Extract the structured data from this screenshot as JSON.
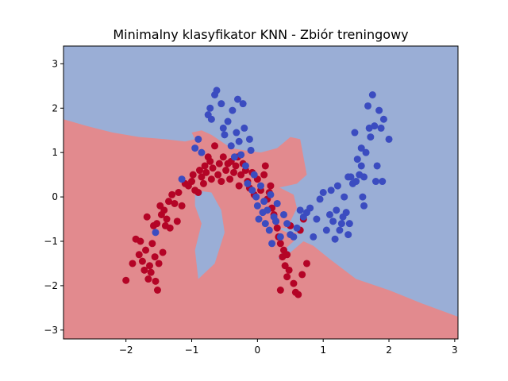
{
  "chart_data": {
    "type": "scatter",
    "title": "Minimalny klasyfikator KNN - Zbiór treningowy",
    "xlabel": "",
    "ylabel": "",
    "xlim": [
      -2.95,
      3.05
    ],
    "ylim": [
      -3.2,
      3.4
    ],
    "xticks": [
      -2,
      -1,
      0,
      1,
      2,
      3
    ],
    "yticks": [
      -3,
      -2,
      -1,
      0,
      1,
      2,
      3
    ],
    "grid": false,
    "legend": "none",
    "colors": {
      "class0_point": "#b40426",
      "class1_point": "#3b4cc0",
      "class0_region": "#e28a8e",
      "class1_region": "#9aaed6"
    },
    "decision_boundary": [
      [
        -2.95,
        1.75
      ],
      [
        -2.6,
        1.6
      ],
      [
        -2.2,
        1.45
      ],
      [
        -1.8,
        1.35
      ],
      [
        -1.4,
        1.3
      ],
      [
        -1.1,
        1.25
      ],
      [
        -0.95,
        1.3
      ],
      [
        -1.0,
        1.45
      ],
      [
        -0.85,
        1.5
      ],
      [
        -0.7,
        1.4
      ],
      [
        -0.55,
        1.25
      ],
      [
        -0.4,
        1.1
      ],
      [
        -0.2,
        1.05
      ],
      [
        0.05,
        1.0
      ],
      [
        0.3,
        1.1
      ],
      [
        0.5,
        1.35
      ],
      [
        0.65,
        1.3
      ],
      [
        0.7,
        0.9
      ],
      [
        0.75,
        0.5
      ],
      [
        0.6,
        0.3
      ],
      [
        0.3,
        0.2
      ],
      [
        0.1,
        -0.1
      ],
      [
        0.15,
        -0.4
      ],
      [
        0.3,
        -0.7
      ],
      [
        0.45,
        -0.8
      ],
      [
        0.6,
        -0.8
      ],
      [
        0.55,
        -1.0
      ],
      [
        0.4,
        -1.2
      ],
      [
        0.3,
        -1.4
      ],
      [
        0.5,
        -1.25
      ],
      [
        0.7,
        -1.0
      ],
      [
        0.85,
        -1.1
      ],
      [
        1.1,
        -1.4
      ],
      [
        1.5,
        -1.85
      ],
      [
        2.0,
        -2.1
      ],
      [
        2.5,
        -2.4
      ],
      [
        3.05,
        -2.7
      ]
    ],
    "red_island": [
      [
        -0.75,
        0.8
      ],
      [
        -0.3,
        0.75
      ],
      [
        0.1,
        0.6
      ],
      [
        0.2,
        0.3
      ],
      [
        0.35,
        0.2
      ],
      [
        0.55,
        0.05
      ],
      [
        0.6,
        -0.25
      ],
      [
        0.45,
        -0.7
      ],
      [
        0.2,
        -0.7
      ],
      [
        0.05,
        -0.5
      ],
      [
        -0.05,
        -0.2
      ],
      [
        -0.1,
        0.1
      ],
      [
        -0.3,
        0.2
      ],
      [
        -0.6,
        0.3
      ],
      [
        -0.75,
        0.55
      ]
    ],
    "blue_pocket": [
      [
        -0.95,
        0.15
      ],
      [
        -0.7,
        0.1
      ],
      [
        -0.55,
        -0.3
      ],
      [
        -0.5,
        -0.8
      ],
      [
        -0.65,
        -1.5
      ],
      [
        -0.9,
        -1.85
      ],
      [
        -0.95,
        -1.2
      ],
      [
        -0.85,
        -0.6
      ],
      [
        -0.95,
        -0.2
      ]
    ],
    "series": [
      {
        "class": 0,
        "points": [
          [
            -2.0,
            -1.88
          ],
          [
            -1.9,
            -1.5
          ],
          [
            -1.85,
            -0.95
          ],
          [
            -1.8,
            -1.3
          ],
          [
            -1.78,
            -1.0
          ],
          [
            -1.75,
            -1.45
          ],
          [
            -1.72,
            -1.65
          ],
          [
            -1.7,
            -1.2
          ],
          [
            -1.68,
            -0.45
          ],
          [
            -1.66,
            -1.85
          ],
          [
            -1.64,
            -1.55
          ],
          [
            -1.62,
            -1.7
          ],
          [
            -1.6,
            -1.05
          ],
          [
            -1.58,
            -0.65
          ],
          [
            -1.56,
            -1.35
          ],
          [
            -1.55,
            -1.9
          ],
          [
            -1.53,
            -0.6
          ],
          [
            -1.52,
            -2.1
          ],
          [
            -1.5,
            -1.5
          ],
          [
            -1.48,
            -0.2
          ],
          [
            -1.46,
            -0.4
          ],
          [
            -1.44,
            -1.25
          ],
          [
            -1.42,
            -0.3
          ],
          [
            -1.4,
            -0.65
          ],
          [
            -1.38,
            -0.5
          ],
          [
            -1.35,
            -0.1
          ],
          [
            -1.33,
            -0.7
          ],
          [
            -1.3,
            0.05
          ],
          [
            -1.26,
            -0.15
          ],
          [
            -1.22,
            -0.55
          ],
          [
            -1.2,
            0.1
          ],
          [
            -1.15,
            -0.2
          ],
          [
            -1.1,
            0.3
          ],
          [
            -1.05,
            0.25
          ],
          [
            -1.0,
            0.35
          ],
          [
            -0.98,
            0.5
          ],
          [
            -0.95,
            0.15
          ],
          [
            -0.9,
            0.1
          ],
          [
            -0.88,
            0.6
          ],
          [
            -0.85,
            0.45
          ],
          [
            -0.82,
            0.3
          ],
          [
            -0.8,
            0.7
          ],
          [
            -0.78,
            0.55
          ],
          [
            -0.75,
            0.9
          ],
          [
            -0.72,
            0.8
          ],
          [
            -0.7,
            0.4
          ],
          [
            -0.68,
            0.65
          ],
          [
            -0.65,
            1.15
          ],
          [
            -0.6,
            0.5
          ],
          [
            -0.58,
            0.75
          ],
          [
            -0.55,
            0.35
          ],
          [
            -0.52,
            0.9
          ],
          [
            -0.48,
            0.6
          ],
          [
            -0.45,
            0.75
          ],
          [
            -0.42,
            0.4
          ],
          [
            -0.4,
            0.8
          ],
          [
            -0.36,
            0.55
          ],
          [
            -0.33,
            0.7
          ],
          [
            -0.3,
            0.9
          ],
          [
            -0.28,
            0.25
          ],
          [
            -0.25,
            0.5
          ],
          [
            -0.22,
            0.75
          ],
          [
            -0.18,
            0.6
          ],
          [
            -0.15,
            0.35
          ],
          [
            -0.12,
            0.2
          ],
          [
            -0.08,
            0.55
          ],
          [
            -0.05,
            0.05
          ],
          [
            0.0,
            0.4
          ],
          [
            0.05,
            0.15
          ],
          [
            0.1,
            0.5
          ],
          [
            0.12,
            0.7
          ],
          [
            0.15,
            -0.05
          ],
          [
            0.18,
            0.1
          ],
          [
            0.2,
            0.25
          ],
          [
            0.22,
            -0.25
          ],
          [
            0.25,
            -0.4
          ],
          [
            0.28,
            -0.55
          ],
          [
            0.3,
            -0.7
          ],
          [
            0.32,
            -0.9
          ],
          [
            0.35,
            -1.05
          ],
          [
            0.38,
            -1.35
          ],
          [
            0.4,
            -1.2
          ],
          [
            0.42,
            -1.55
          ],
          [
            0.45,
            -1.8
          ],
          [
            0.48,
            -1.65
          ],
          [
            0.5,
            -0.65
          ],
          [
            0.55,
            -1.95
          ],
          [
            0.58,
            -2.15
          ],
          [
            0.62,
            -2.2
          ],
          [
            0.65,
            -0.75
          ],
          [
            0.68,
            -1.75
          ],
          [
            0.7,
            -0.5
          ],
          [
            0.75,
            -1.5
          ],
          [
            0.35,
            -2.1
          ],
          [
            0.45,
            -1.3
          ]
        ]
      },
      {
        "class": 1,
        "points": [
          [
            -1.55,
            -0.8
          ],
          [
            -1.15,
            0.4
          ],
          [
            -0.95,
            1.1
          ],
          [
            -0.9,
            1.3
          ],
          [
            -0.85,
            1.0
          ],
          [
            -0.75,
            1.85
          ],
          [
            -0.72,
            2.0
          ],
          [
            -0.7,
            1.75
          ],
          [
            -0.65,
            2.3
          ],
          [
            -0.62,
            2.4
          ],
          [
            -0.55,
            2.1
          ],
          [
            -0.52,
            1.55
          ],
          [
            -0.5,
            1.4
          ],
          [
            -0.45,
            1.7
          ],
          [
            -0.4,
            1.15
          ],
          [
            -0.38,
            1.95
          ],
          [
            -0.35,
            0.9
          ],
          [
            -0.32,
            1.45
          ],
          [
            -0.3,
            2.2
          ],
          [
            -0.28,
            1.25
          ],
          [
            -0.25,
            0.95
          ],
          [
            -0.22,
            2.1
          ],
          [
            -0.2,
            1.55
          ],
          [
            -0.18,
            0.7
          ],
          [
            -0.15,
            0.3
          ],
          [
            -0.12,
            1.3
          ],
          [
            -0.1,
            1.05
          ],
          [
            -0.08,
            0.15
          ],
          [
            -0.05,
            0.5
          ],
          [
            -0.02,
            0.0
          ],
          [
            0.0,
            -0.2
          ],
          [
            0.02,
            -0.5
          ],
          [
            0.05,
            0.25
          ],
          [
            0.08,
            -0.35
          ],
          [
            0.1,
            -0.1
          ],
          [
            0.12,
            -0.6
          ],
          [
            0.15,
            -0.3
          ],
          [
            0.18,
            -0.75
          ],
          [
            0.2,
            0.05
          ],
          [
            0.22,
            -1.05
          ],
          [
            0.25,
            -0.45
          ],
          [
            0.28,
            -0.55
          ],
          [
            0.3,
            -0.15
          ],
          [
            0.35,
            -0.9
          ],
          [
            0.4,
            -0.4
          ],
          [
            0.45,
            -0.6
          ],
          [
            0.5,
            -0.85
          ],
          [
            0.55,
            -0.9
          ],
          [
            0.6,
            -0.7
          ],
          [
            0.65,
            -0.3
          ],
          [
            0.7,
            -0.45
          ],
          [
            0.75,
            -0.35
          ],
          [
            0.8,
            -0.25
          ],
          [
            0.85,
            -0.9
          ],
          [
            0.9,
            -0.5
          ],
          [
            0.95,
            -0.05
          ],
          [
            1.0,
            0.1
          ],
          [
            1.05,
            -0.75
          ],
          [
            1.1,
            -0.4
          ],
          [
            1.12,
            0.15
          ],
          [
            1.15,
            -0.55
          ],
          [
            1.18,
            -0.95
          ],
          [
            1.2,
            -0.3
          ],
          [
            1.22,
            0.25
          ],
          [
            1.25,
            -0.75
          ],
          [
            1.28,
            -0.6
          ],
          [
            1.3,
            -0.45
          ],
          [
            1.32,
            0.0
          ],
          [
            1.35,
            -0.35
          ],
          [
            1.38,
            -0.85
          ],
          [
            1.4,
            -0.6
          ],
          [
            1.42,
            0.45
          ],
          [
            1.45,
            0.3
          ],
          [
            1.48,
            1.45
          ],
          [
            1.5,
            0.35
          ],
          [
            1.52,
            0.85
          ],
          [
            1.55,
            0.5
          ],
          [
            1.58,
            1.1
          ],
          [
            1.6,
            0.0
          ],
          [
            1.62,
            -0.2
          ],
          [
            1.65,
            1.0
          ],
          [
            1.68,
            2.05
          ],
          [
            1.7,
            1.55
          ],
          [
            1.72,
            1.35
          ],
          [
            1.75,
            2.3
          ],
          [
            1.78,
            1.6
          ],
          [
            1.8,
            0.35
          ],
          [
            1.82,
            0.7
          ],
          [
            1.85,
            1.95
          ],
          [
            1.88,
            1.55
          ],
          [
            1.9,
            0.35
          ],
          [
            1.92,
            1.75
          ],
          [
            2.0,
            1.3
          ],
          [
            1.58,
            0.7
          ],
          [
            1.38,
            0.45
          ],
          [
            1.62,
            0.45
          ]
        ]
      }
    ]
  }
}
